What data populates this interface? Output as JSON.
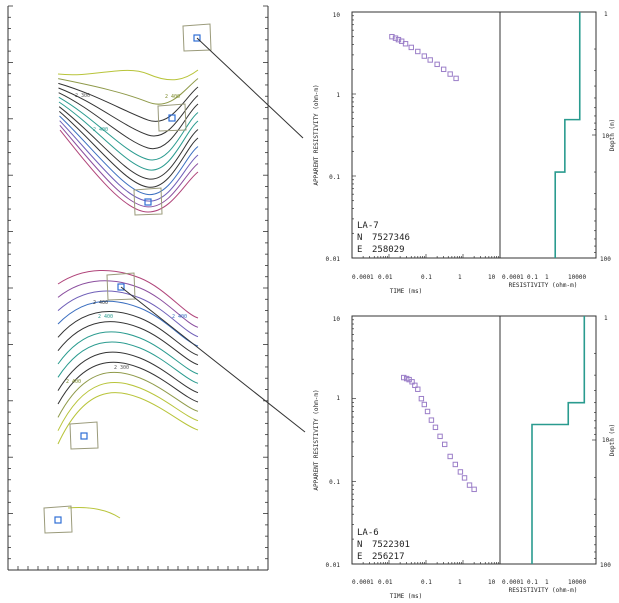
{
  "colors": {
    "frame": "#333333",
    "data_point": "#9b7ec8",
    "model_line": "#2a9b8f",
    "station_marker": "#2f6fd6",
    "station_box": "#9a9a7a",
    "leader_line": "#333333"
  },
  "contour_map": {
    "type": "contour",
    "upper_group": {
      "contour_labels": [
        "2 400",
        "2 300",
        "2 400"
      ],
      "contour_colors": [
        "#b8c43a",
        "#8f9a4a",
        "#333333",
        "#333333",
        "#333333",
        "#2a9b8f",
        "#2a9b8f",
        "#333333",
        "#333333",
        "#3b6fc0",
        "#6f5fb8",
        "#8b4f9f",
        "#b0447a"
      ]
    },
    "lower_group": {
      "contour_labels": [
        "2 400",
        "2 400",
        "2 400",
        "2 300",
        "2 400"
      ],
      "contour_colors": [
        "#b0447a",
        "#8b4f9f",
        "#6f5fb8",
        "#3b6fc0",
        "#333333",
        "#333333",
        "#2a9b8f",
        "#2a9b8f",
        "#333333",
        "#333333",
        "#8f9a4a",
        "#b8c43a",
        "#b8c43a"
      ]
    },
    "station_icons": [
      "station-1-icon",
      "station-2-icon",
      "station-3-icon",
      "station-4-icon",
      "station-5-icon",
      "station-6-icon"
    ]
  },
  "chart_data": [
    {
      "type": "scatter",
      "station": "LA-7",
      "n_label": "N",
      "n_value": "7527346",
      "e_label": "E",
      "e_value": "258029",
      "xlabel": "TIME (ms)",
      "ylabel": "APPARENT RESISTIVITY (ohm-m)",
      "x_scale": "log",
      "y_scale": "log",
      "xlim": [
        0.001,
        10
      ],
      "ylim": [
        0.01,
        10
      ],
      "x_tick_labels": [
        "0.0001",
        "0.01",
        "0.1",
        "1",
        "10"
      ],
      "y_tick_labels": [
        "10",
        "1",
        "0.1",
        "0.01"
      ],
      "points": [
        {
          "x": 0.012,
          "y": 5.0
        },
        {
          "x": 0.015,
          "y": 4.8
        },
        {
          "x": 0.018,
          "y": 4.6
        },
        {
          "x": 0.022,
          "y": 4.4
        },
        {
          "x": 0.028,
          "y": 4.1
        },
        {
          "x": 0.04,
          "y": 3.7
        },
        {
          "x": 0.06,
          "y": 3.3
        },
        {
          "x": 0.09,
          "y": 2.9
        },
        {
          "x": 0.13,
          "y": 2.6
        },
        {
          "x": 0.2,
          "y": 2.3
        },
        {
          "x": 0.3,
          "y": 2.0
        },
        {
          "x": 0.45,
          "y": 1.75
        },
        {
          "x": 0.65,
          "y": 1.55
        }
      ]
    },
    {
      "type": "scatter",
      "station": "LA-6",
      "n_label": "N",
      "n_value": "7522301",
      "e_label": "E",
      "e_value": "256217",
      "xlabel": "TIME (ms)",
      "ylabel": "APPARENT RESISTIVITY (ohm-m)",
      "x_scale": "log",
      "y_scale": "log",
      "xlim": [
        0.001,
        10
      ],
      "ylim": [
        0.01,
        10
      ],
      "x_tick_labels": [
        "0.0001",
        "0.01",
        "0.1",
        "1",
        "10"
      ],
      "y_tick_labels": [
        "10",
        "1",
        "0.1",
        "0.01"
      ],
      "points": [
        {
          "x": 0.025,
          "y": 1.8
        },
        {
          "x": 0.03,
          "y": 1.75
        },
        {
          "x": 0.035,
          "y": 1.7
        },
        {
          "x": 0.042,
          "y": 1.6
        },
        {
          "x": 0.05,
          "y": 1.45
        },
        {
          "x": 0.06,
          "y": 1.3
        },
        {
          "x": 0.075,
          "y": 1.0
        },
        {
          "x": 0.09,
          "y": 0.85
        },
        {
          "x": 0.11,
          "y": 0.7
        },
        {
          "x": 0.14,
          "y": 0.55
        },
        {
          "x": 0.18,
          "y": 0.45
        },
        {
          "x": 0.24,
          "y": 0.35
        },
        {
          "x": 0.32,
          "y": 0.28
        },
        {
          "x": 0.45,
          "y": 0.2
        },
        {
          "x": 0.62,
          "y": 0.16
        },
        {
          "x": 0.85,
          "y": 0.13
        },
        {
          "x": 1.1,
          "y": 0.11
        },
        {
          "x": 1.5,
          "y": 0.09
        },
        {
          "x": 2.0,
          "y": 0.08
        }
      ]
    },
    {
      "type": "line",
      "station": "LA-7",
      "xlabel": "RESISTIVITY (ohm-m)",
      "ylabel": "Depth (m)",
      "x_tick_labels": [
        "0.0001",
        "0.1",
        "1",
        "10000"
      ],
      "y_tick_labels": [
        "1",
        "10",
        "100"
      ],
      "x_scale": "log",
      "y_scale": "log",
      "xlim": [
        0.0001,
        100000
      ],
      "ylim": [
        1,
        100
      ],
      "steps": [
        {
          "resistivity": 3000,
          "depth_top": 1,
          "depth_bottom": 7.5
        },
        {
          "resistivity": 120,
          "depth_top": 7.5,
          "depth_bottom": 20
        },
        {
          "resistivity": 15,
          "depth_top": 20,
          "depth_bottom": 100
        }
      ]
    },
    {
      "type": "line",
      "station": "LA-6",
      "xlabel": "RESISTIVITY (ohm-m)",
      "ylabel": "Depth (m)",
      "x_tick_labels": [
        "0.0001",
        "0.1",
        "1",
        "10000"
      ],
      "y_tick_labels": [
        "1",
        "10",
        "100"
      ],
      "x_scale": "log",
      "y_scale": "log",
      "xlim": [
        0.0001,
        100000
      ],
      "ylim": [
        1,
        100
      ],
      "steps": [
        {
          "resistivity": 8000,
          "depth_top": 1,
          "depth_bottom": 5
        },
        {
          "resistivity": 250,
          "depth_top": 5,
          "depth_bottom": 7.5
        },
        {
          "resistivity": 0.1,
          "depth_top": 7.5,
          "depth_bottom": 100
        }
      ]
    }
  ]
}
